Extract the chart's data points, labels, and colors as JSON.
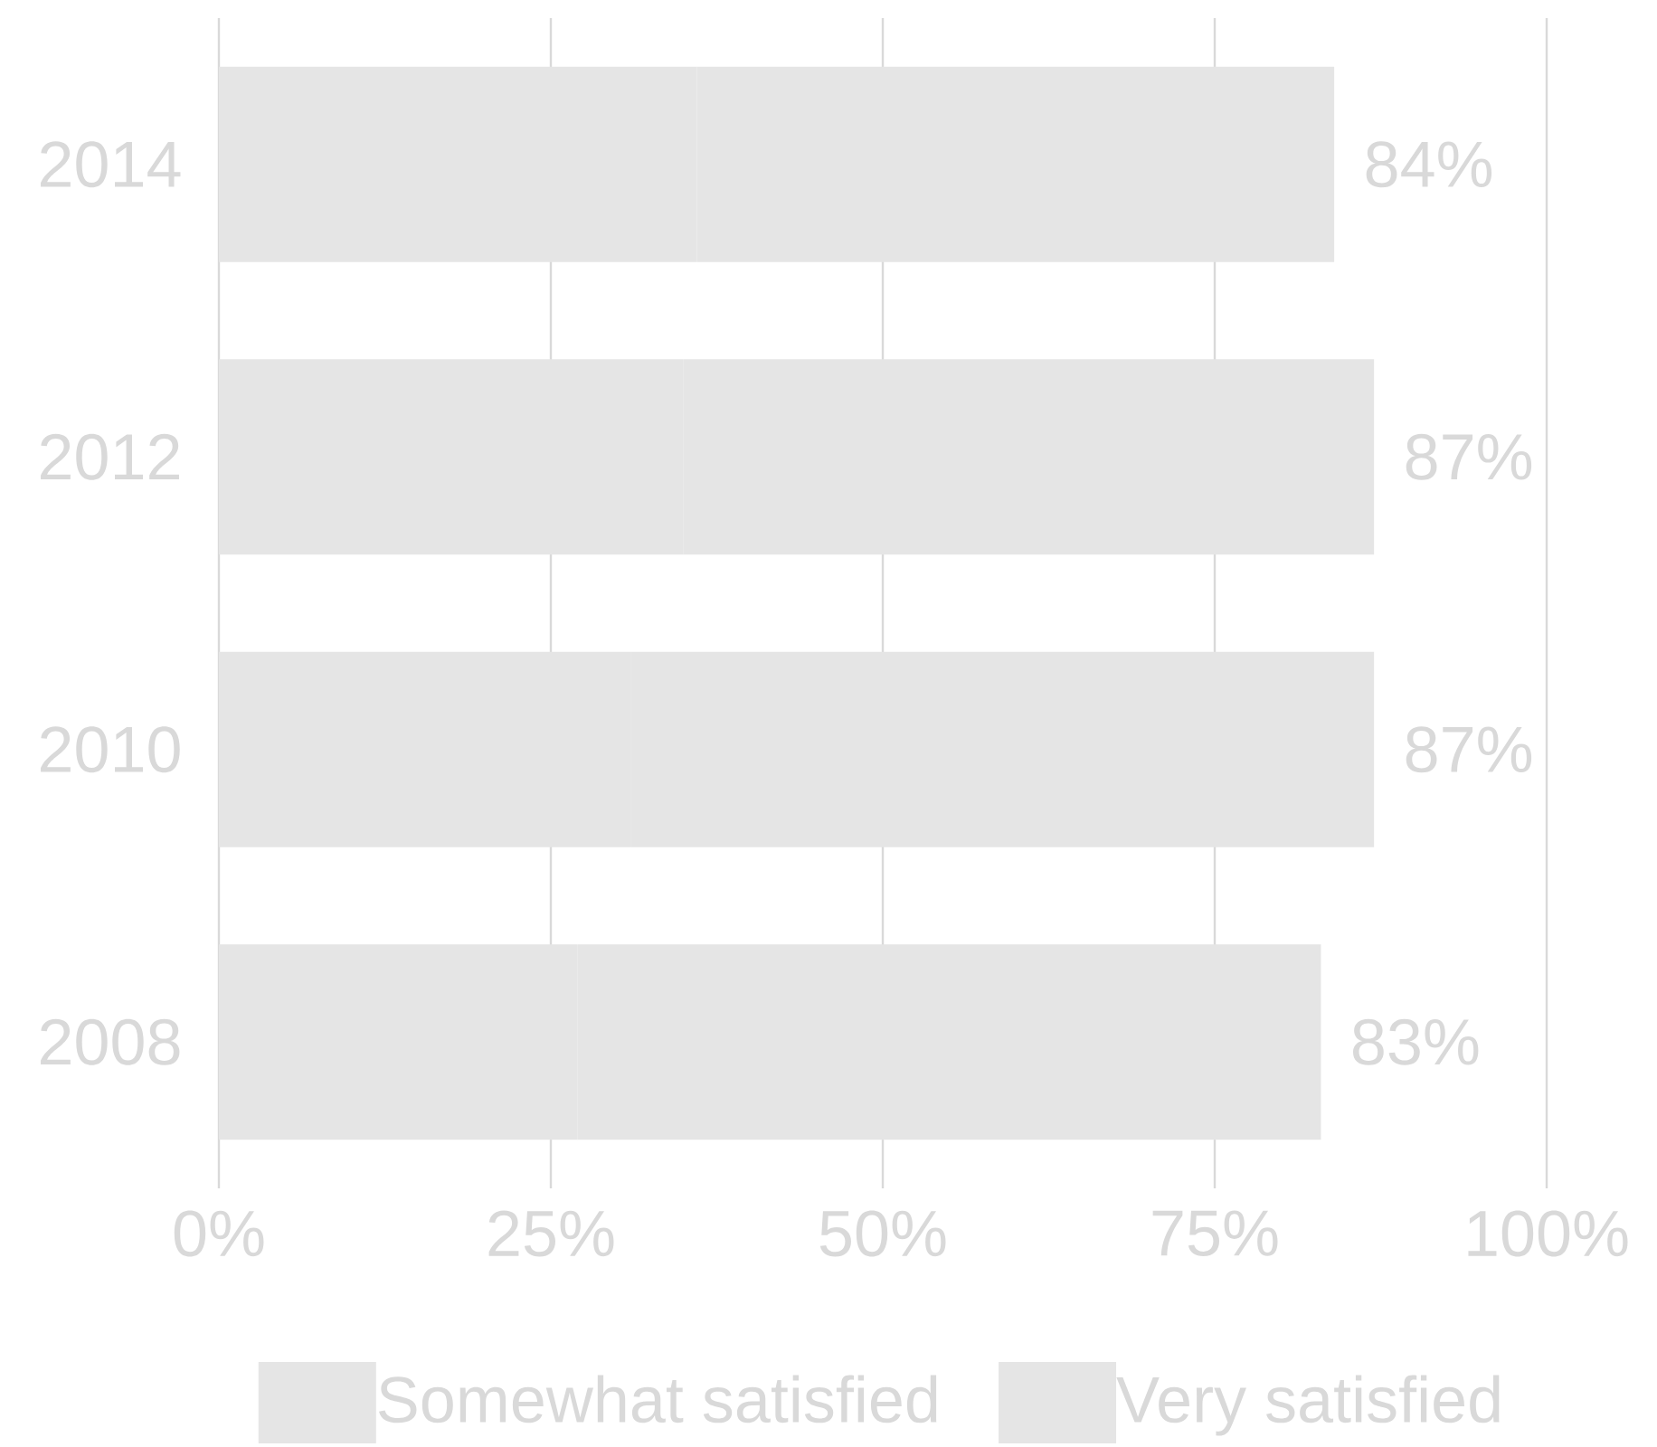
{
  "chart_data": {
    "type": "bar",
    "orientation": "horizontal",
    "stacked": true,
    "categories": [
      "2014",
      "2012",
      "2010",
      "2008"
    ],
    "series": [
      {
        "name": "Somewhat satisfied",
        "color": "#e5e5e5",
        "values": [
          36,
          35,
          31,
          27
        ]
      },
      {
        "name": "Very satisfied",
        "color": "#e5e5e5",
        "values": [
          48,
          52,
          56,
          56
        ]
      }
    ],
    "totals": [
      "84%",
      "87%",
      "87%",
      "83%"
    ],
    "xlim": [
      0,
      100
    ],
    "xticks": [
      {
        "value": 0,
        "label": "0%"
      },
      {
        "value": 25,
        "label": "25%"
      },
      {
        "value": 50,
        "label": "50%"
      },
      {
        "value": 75,
        "label": "75%"
      },
      {
        "value": 100,
        "label": "100%"
      }
    ],
    "grid": "x",
    "legend": "bottom"
  }
}
